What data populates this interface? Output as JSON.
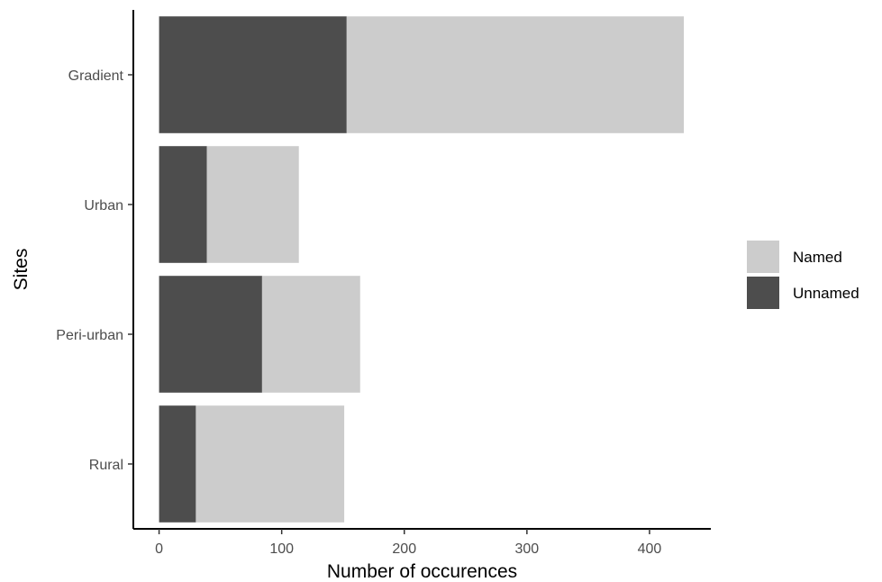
{
  "chart_data": {
    "type": "bar",
    "orientation": "horizontal",
    "stacked": true,
    "categories": [
      "Rural",
      "Peri-urban",
      "Urban",
      "Gradient"
    ],
    "series": [
      {
        "name": "Unnamed",
        "values": [
          30,
          84,
          39,
          153
        ],
        "color": "#4d4d4d"
      },
      {
        "name": "Named",
        "values": [
          121,
          80,
          75,
          275
        ],
        "color": "#cccccc"
      }
    ],
    "legend_order": [
      "Named",
      "Unnamed"
    ],
    "legend_position": "right",
    "xlabel": "Number of occurences",
    "ylabel": "Sites",
    "xlim": [
      -21,
      450
    ],
    "xticks": [
      0,
      100,
      200,
      300,
      400
    ],
    "grid": false
  }
}
